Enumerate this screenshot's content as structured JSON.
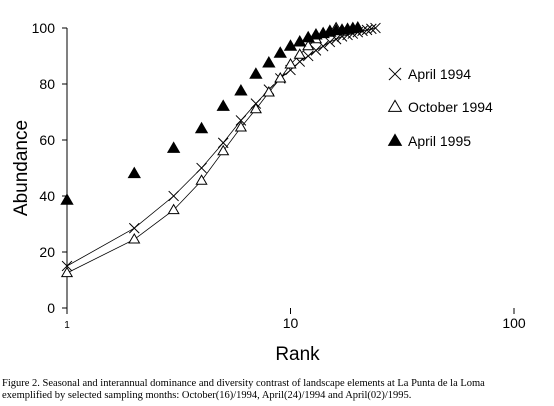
{
  "chart_data": {
    "type": "scatter",
    "xscale": "log",
    "xlim": [
      1,
      100
    ],
    "ylim": [
      0,
      100
    ],
    "xlabel": "Rank",
    "ylabel": "Abundance",
    "x_ticks": [
      1,
      10,
      100
    ],
    "y_ticks": [
      0,
      20,
      40,
      60,
      80,
      100
    ],
    "grid": false,
    "legend_position": "right",
    "series": [
      {
        "name": "April 1994",
        "marker": "x",
        "line": true,
        "x": [
          1,
          2,
          3,
          4,
          5,
          6,
          7,
          8,
          9,
          10,
          11,
          12,
          13,
          14,
          15,
          16,
          17,
          18,
          19,
          20,
          21,
          22,
          23,
          24
        ],
        "y": [
          15,
          28.5,
          40,
          50,
          59,
          67,
          73,
          78,
          82,
          85,
          88,
          90,
          92,
          93.5,
          95,
          96,
          97,
          97.5,
          98,
          98.5,
          99,
          99.3,
          99.7,
          100
        ]
      },
      {
        "name": "October 1994",
        "marker": "triangle-open",
        "line": true,
        "x": [
          1,
          2,
          3,
          4,
          5,
          6,
          7,
          8,
          9,
          10,
          11,
          12,
          13,
          14,
          15,
          16
        ],
        "y": [
          12.5,
          24.5,
          35,
          45.5,
          56,
          64.5,
          71,
          77,
          82,
          87,
          90.5,
          93.5,
          96,
          98,
          99,
          100
        ]
      },
      {
        "name": "April 1995",
        "marker": "triangle-filled",
        "line": false,
        "x": [
          1,
          2,
          3,
          4,
          5,
          6,
          7,
          8,
          9,
          10,
          11,
          12,
          13,
          14,
          15,
          16,
          17,
          18,
          19,
          20
        ],
        "y": [
          38.5,
          48,
          57,
          64,
          72,
          77.5,
          83.5,
          87.5,
          91,
          93.5,
          95,
          96.5,
          97.5,
          98,
          98.5,
          99,
          99.2,
          99.5,
          99.8,
          100
        ]
      }
    ]
  },
  "caption": {
    "line1": "Figure 2. Seasonal and interannual dominance and diversity contrast of landscape elements at La Punta de la Loma",
    "line2": "exemplified by selected sampling months: October(16)/1994, April(24)/1994 and April(02)/1995."
  }
}
